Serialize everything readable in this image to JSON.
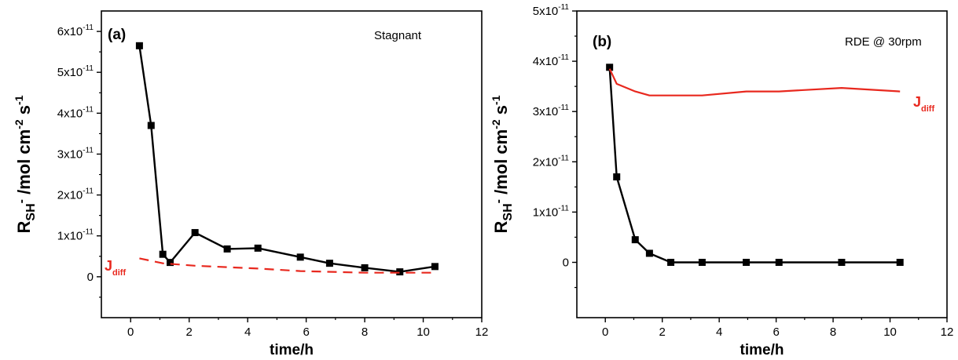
{
  "figure": {
    "panels": [
      {
        "panel_label": "(a)",
        "condition": "Stagnant",
        "jdiff_label": "J",
        "jdiff_sub": "diff"
      },
      {
        "panel_label": "(b)",
        "condition": "RDE @ 30rpm",
        "jdiff_label": "J",
        "jdiff_sub": "diff"
      }
    ]
  },
  "chart_data": [
    {
      "type": "line",
      "title": "",
      "xlabel": "time/h",
      "ylabel": "R_SH- /mol cm^-2 s^-1",
      "xlim": [
        -1,
        12
      ],
      "ylim": [
        -1e-11,
        6.5e-11
      ],
      "xticks": [
        0,
        2,
        4,
        6,
        8,
        10,
        12
      ],
      "yticks": [
        0,
        1e-11,
        2e-11,
        3e-11,
        4e-11,
        5e-11,
        6e-11
      ],
      "ytick_labels": [
        "0",
        "1x10^-11",
        "2x10^-11",
        "3x10^-11",
        "4x10^-11",
        "5x10^-11",
        "6x10^-11"
      ],
      "grid": false,
      "series": [
        {
          "style": "solid-black-square-markers",
          "color": "#000000",
          "x": [
            0.3,
            0.7,
            1.1,
            1.35,
            2.2,
            3.3,
            4.35,
            5.8,
            6.8,
            8.0,
            9.2,
            10.4
          ],
          "y": [
            5.65e-11,
            3.7e-11,
            5.5e-12,
            3.5e-12,
            1.08e-11,
            6.8e-12,
            7e-12,
            4.8e-12,
            3.3e-12,
            2.2e-12,
            1.2e-12,
            2.5e-12
          ]
        },
        {
          "name": "Jdiff",
          "style": "dashed-red",
          "color": "#e8281e",
          "x": [
            0.3,
            1.1,
            2.2,
            4.35,
            5.8,
            8.0,
            9.2,
            10.4
          ],
          "y": [
            4.5e-12,
            3.3e-12,
            2.7e-12,
            2e-12,
            1.4e-12,
            1e-12,
            1e-12,
            1e-12
          ]
        }
      ]
    },
    {
      "type": "line",
      "title": "",
      "xlabel": "time/h",
      "ylabel": "R_SH- /mol cm^-2 s^-1",
      "xlim": [
        -1,
        12
      ],
      "ylim": [
        -1.1e-11,
        5e-11
      ],
      "xticks": [
        0,
        2,
        4,
        6,
        8,
        10,
        12
      ],
      "yticks": [
        0,
        1e-11,
        2e-11,
        3e-11,
        4e-11,
        5e-11
      ],
      "ytick_labels": [
        "0",
        "1x10^-11",
        "2x10^-11",
        "3x10^-11",
        "4x10^-11",
        "5x10^-11"
      ],
      "grid": false,
      "series": [
        {
          "style": "solid-black-square-markers",
          "color": "#000000",
          "x": [
            0.15,
            0.4,
            1.05,
            1.55,
            2.3,
            3.4,
            4.95,
            6.1,
            8.3,
            10.35
          ],
          "y": [
            3.88e-11,
            1.7e-11,
            4.5e-12,
            1.8e-12,
            0,
            0,
            0,
            0,
            0,
            0
          ]
        },
        {
          "name": "Jdiff",
          "style": "solid-red",
          "color": "#e8281e",
          "x": [
            0.15,
            0.4,
            1.05,
            1.55,
            2.3,
            3.4,
            4.95,
            6.1,
            8.3,
            10.35
          ],
          "y": [
            3.85e-11,
            3.55e-11,
            3.4e-11,
            3.32e-11,
            3.32e-11,
            3.32e-11,
            3.4e-11,
            3.4e-11,
            3.47e-11,
            3.4e-11
          ]
        }
      ]
    }
  ]
}
